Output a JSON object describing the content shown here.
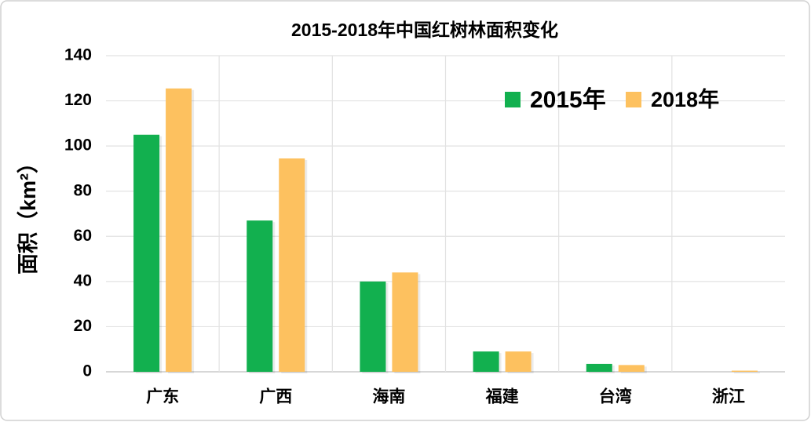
{
  "chart_data": {
    "type": "bar",
    "title": "2015-2018年中国红树林面积变化",
    "y_label": "面积（km²）",
    "categories": [
      "广东",
      "广西",
      "海南",
      "福建",
      "台湾",
      "浙江"
    ],
    "series": [
      {
        "name": "2015年",
        "color": "#12b04f",
        "values": [
          105,
          67,
          40,
          9,
          3.5,
          0
        ]
      },
      {
        "name": "2018年",
        "color": "#fdc15f",
        "values": [
          125.5,
          94.5,
          44,
          9,
          3,
          0.5
        ]
      }
    ],
    "ylim": [
      0,
      140
    ],
    "yticks": [
      0,
      20,
      40,
      60,
      80,
      100,
      120,
      140
    ],
    "grid": true,
    "legend": "top-right"
  }
}
